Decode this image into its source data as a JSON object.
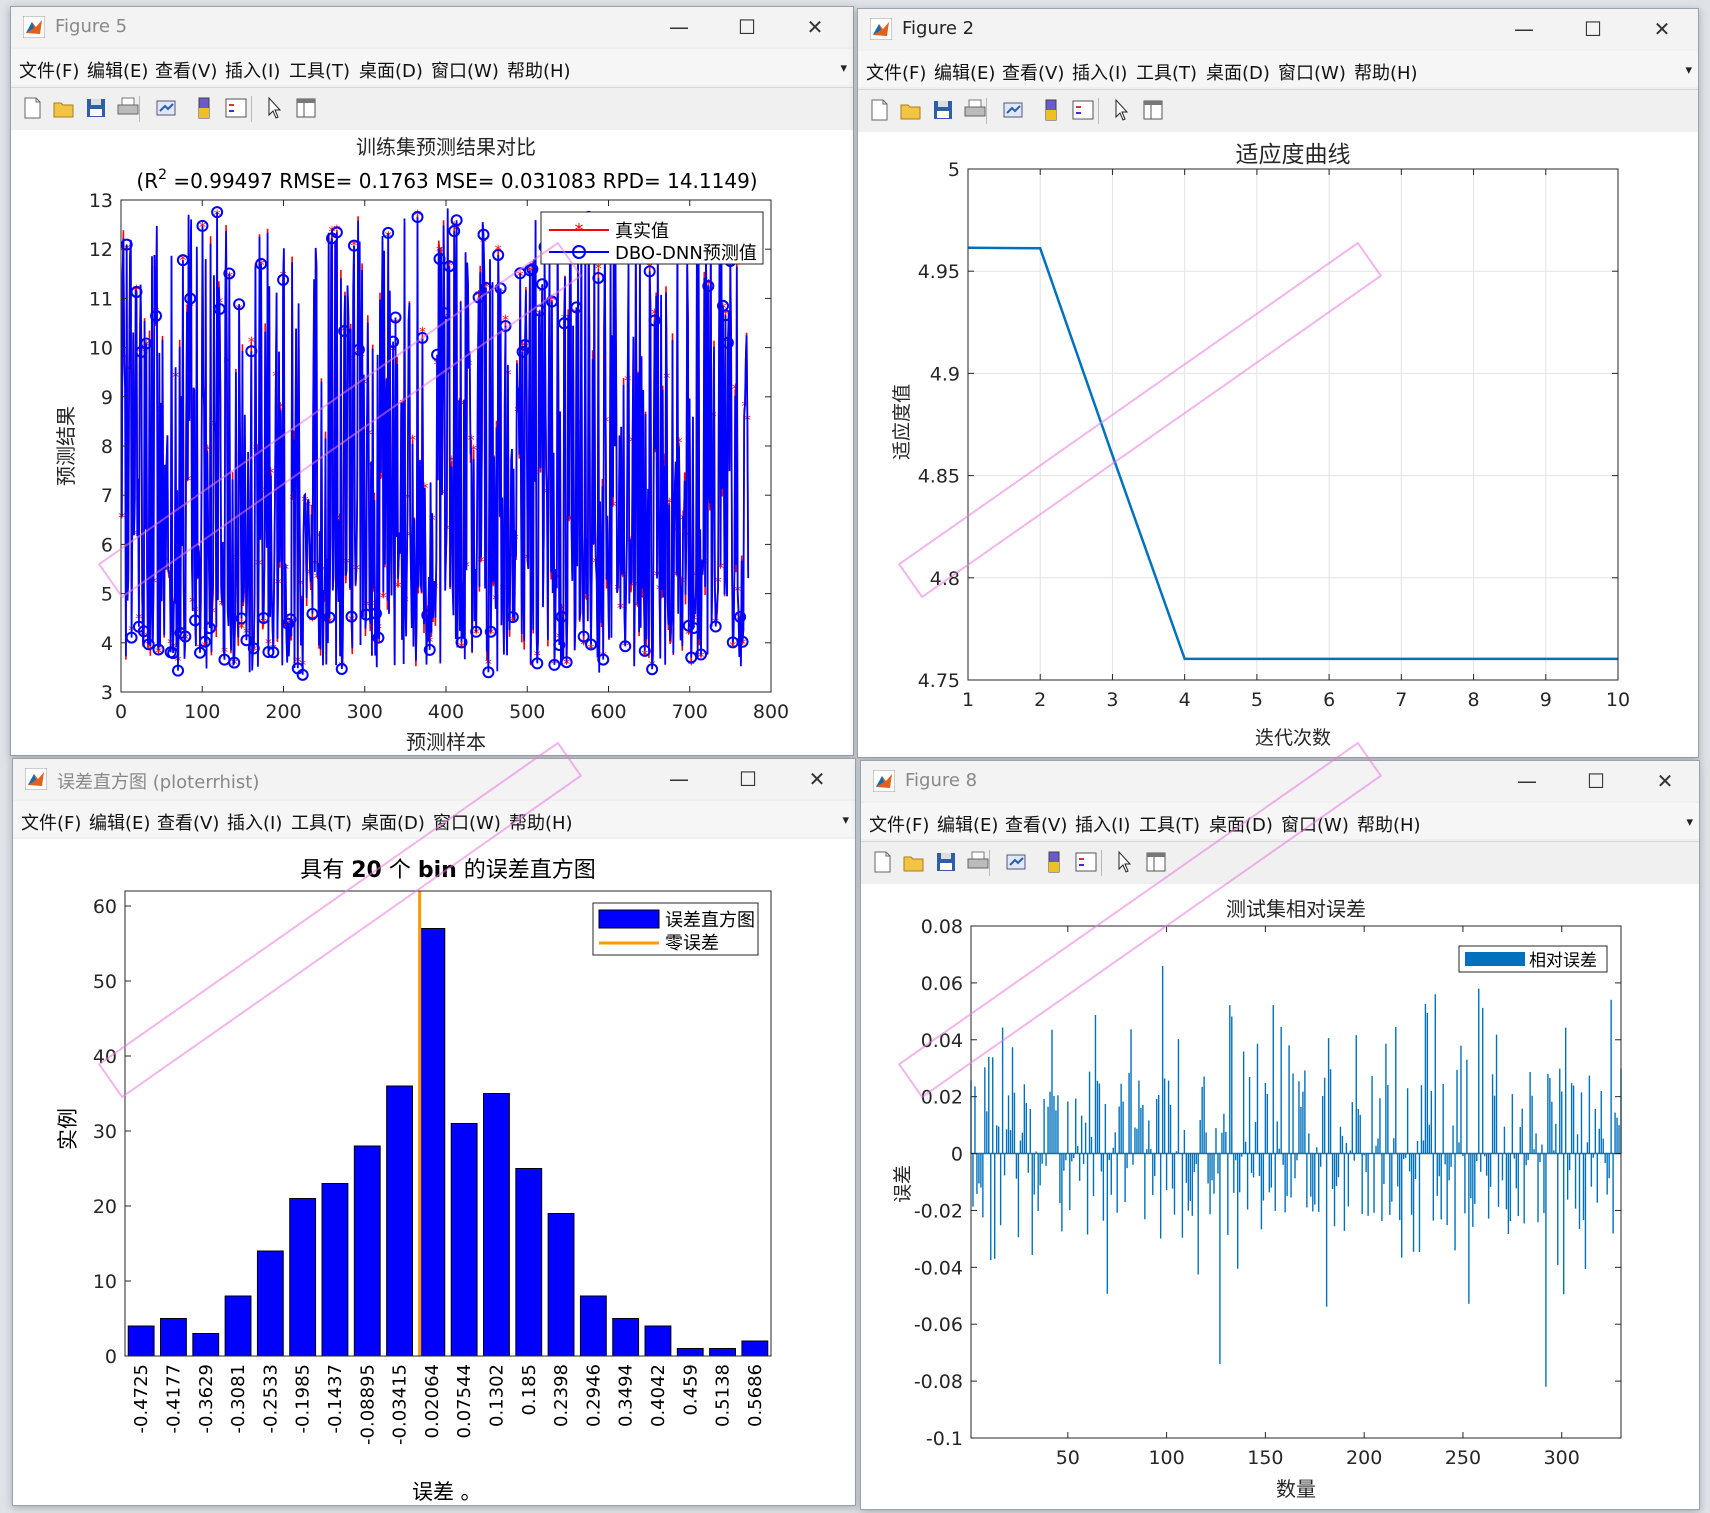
{
  "menu": [
    "文件(F)",
    "编辑(E)",
    "查看(V)",
    "插入(I)",
    "工具(T)",
    "桌面(D)",
    "窗口(W)",
    "帮助(H)"
  ],
  "fig5": {
    "title": "Figure 5",
    "chart_data": {
      "type": "line",
      "title": "训练集预测结果对比",
      "subtitle_parts": [
        "(R",
        "2",
        " =0.99497 RMSE= 0.1763 MSE= 0.031083 RPD= 14.1149)"
      ],
      "xlabel": "预测样本",
      "ylabel": "预测结果",
      "xlim": [
        0,
        800
      ],
      "ylim": [
        3,
        13
      ],
      "xticks": [
        0,
        100,
        200,
        300,
        400,
        500,
        600,
        700,
        800
      ],
      "yticks": [
        3,
        4,
        5,
        6,
        7,
        8,
        9,
        10,
        11,
        12,
        13
      ],
      "legend": [
        "真实值",
        "DBO-DNN预测值"
      ],
      "series": [
        {
          "name": "真实值",
          "color": "#ff0000",
          "marker": "*"
        },
        {
          "name": "DBO-DNN预测值",
          "color": "#0000ff",
          "marker": "o"
        }
      ],
      "n_points": 770,
      "value_range": [
        3.4,
        12.9
      ]
    }
  },
  "fig2": {
    "title": "Figure 2",
    "chart_data": {
      "type": "line",
      "title": "适应度曲线",
      "xlabel": "迭代次数",
      "ylabel": "适应度值",
      "xlim": [
        1,
        10
      ],
      "ylim": [
        4.75,
        5
      ],
      "xticks": [
        1,
        2,
        3,
        4,
        5,
        6,
        7,
        8,
        9,
        10
      ],
      "yticks": [
        "4.75",
        "4.8",
        "4.85",
        "4.9",
        "4.95",
        "5"
      ],
      "x": [
        1,
        2,
        3,
        4,
        5,
        6,
        7,
        8,
        9,
        10
      ],
      "y": [
        4.9615,
        4.9612,
        4.86,
        4.7603,
        4.7603,
        4.7603,
        4.7603,
        4.7603,
        4.7603,
        4.7603
      ],
      "color": "#0072bd",
      "grid": true
    }
  },
  "fig_hist": {
    "title": "误差直方图 (ploterrhist)",
    "chart_data": {
      "type": "bar",
      "title_parts": [
        "具有 ",
        "20",
        " 个 ",
        "bin",
        " 的误差直方图"
      ],
      "xlabel": "误差",
      "xlabel_tail": "。",
      "ylabel": "实例",
      "ylim": [
        0,
        62
      ],
      "yticks": [
        0,
        10,
        20,
        30,
        40,
        50,
        60
      ],
      "categories": [
        "-0.4725",
        "-0.4177",
        "-0.3629",
        "-0.3081",
        "-0.2533",
        "-0.1985",
        "-0.1437",
        "-0.08895",
        "-0.03415",
        "0.02064",
        "0.07544",
        "0.1302",
        "0.185",
        "0.2398",
        "0.2946",
        "0.3494",
        "0.4042",
        "0.459",
        "0.5138",
        "0.5686"
      ],
      "values": [
        4,
        5,
        3,
        8,
        14,
        21,
        23,
        28,
        36,
        57,
        31,
        35,
        25,
        19,
        8,
        5,
        4,
        1,
        1,
        2
      ],
      "zero_error_at": 0.0,
      "legend": [
        "误差直方图",
        "零误差"
      ],
      "bar_color": "#0000ff",
      "zero_color": "#ff9900"
    }
  },
  "fig8": {
    "title": "Figure 8",
    "chart_data": {
      "type": "bar",
      "title": "测试集相对误差",
      "xlabel": "数量",
      "ylabel": "误差",
      "xlim": [
        1,
        330
      ],
      "ylim": [
        -0.1,
        0.08
      ],
      "xticks": [
        50,
        100,
        150,
        200,
        250,
        300
      ],
      "yticks": [
        "-0.1",
        "-0.08",
        "-0.06",
        "-0.04",
        "-0.02",
        "0",
        "0.02",
        "0.04",
        "0.06",
        "0.08"
      ],
      "legend": [
        "相对误差"
      ],
      "color": "#0072bd",
      "n_points": 330,
      "value_range": [
        -0.082,
        0.066
      ]
    }
  }
}
